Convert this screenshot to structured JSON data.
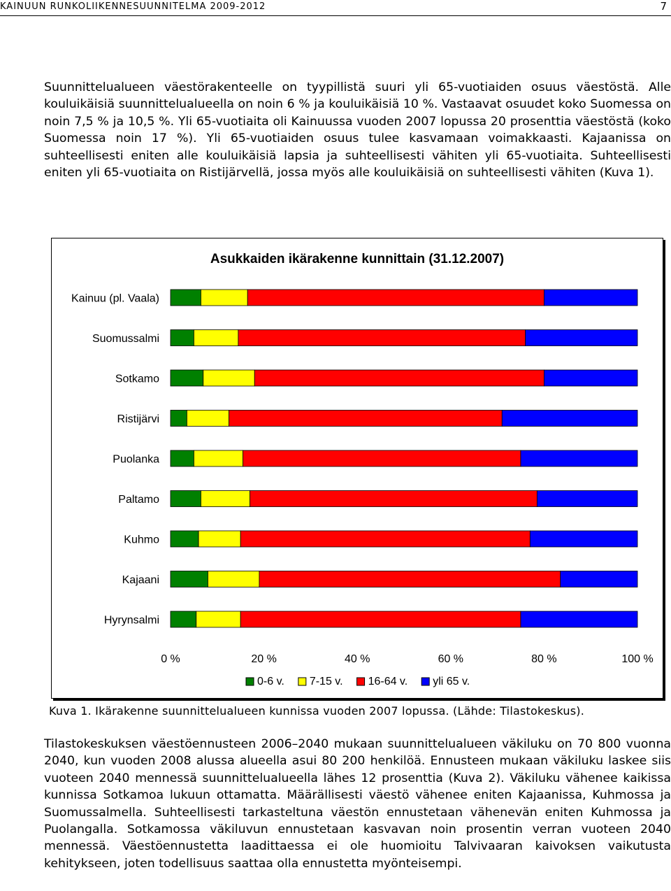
{
  "header": {
    "title": "KAINUUN RUNKOLIIKENNESUUNNITELMA 2009-2012",
    "page_number": "7"
  },
  "paragraph1": "Suunnittelualueen väestörakenteelle on tyypillistä suuri yli 65-vuotiaiden osuus väestöstä. Alle kouluikäisiä suunnittelualueella on noin 6 % ja kouluikäisiä 10 %. Vastaavat osuudet koko Suomessa on noin 7,5 % ja 10,5 %. Yli 65-vuotiaita oli Kainuussa vuoden 2007 lopussa 20 prosenttia väestöstä (koko Suomessa noin 17 %). Yli 65-vuotiaiden osuus tulee kasvamaan voimakkaasti. Kajaanissa on suhteellisesti eniten alle kouluikäisiä lapsia ja suhteellisesti vähiten yli 65-vuotiaita. Suhteellisesti eniten yli 65-vuotiaita on Ristijärvellä, jossa myös alle kouluikäisiä on suhteellisesti vähiten (Kuva 1).",
  "chart_data": {
    "type": "bar",
    "orientation": "horizontal",
    "stacked": "percent",
    "title": "Asukkaiden ikärakenne kunnittain (31.12.2007)",
    "categories": [
      "Kainuu (pl. Vaala)",
      "Suomussalmi",
      "Sotkamo",
      "Ristijärvi",
      "Puolanka",
      "Paltamo",
      "Kuhmo",
      "Kajaani",
      "Hyrynsalmi"
    ],
    "series": [
      {
        "name": "0-6 v.",
        "color": "#008000",
        "values": [
          6.5,
          5,
          7,
          3.5,
          5,
          6.5,
          6,
          8,
          5.5
        ]
      },
      {
        "name": "7-15 v.",
        "color": "#ffff00",
        "values": [
          10,
          9.5,
          11,
          9,
          10.5,
          10.5,
          9,
          11,
          9.5
        ]
      },
      {
        "name": "16-64 v.",
        "color": "#ff0000",
        "values": [
          63.5,
          61.5,
          62,
          58.5,
          59.5,
          61.5,
          62,
          64.5,
          60
        ]
      },
      {
        "name": "yli 65 v.",
        "color": "#0000ff",
        "values": [
          20,
          24,
          20,
          29,
          25,
          21.5,
          23,
          16.5,
          25
        ]
      }
    ],
    "xticks": [
      "0 %",
      "20 %",
      "40 %",
      "60 %",
      "80 %",
      "100 %"
    ],
    "xlim": [
      0,
      100
    ],
    "legend_position": "bottom",
    "grid": false
  },
  "caption": "Kuva 1. Ikärakenne suunnittelualueen kunnissa vuoden 2007 lopussa. (Lähde: Tilastokeskus).",
  "paragraph2": "Tilastokeskuksen väestöennusteen 2006–2040 mukaan suunnittelualueen väkiluku on 70 800 vuonna 2040, kun vuoden 2008 alussa alueella asui 80 200 henkilöä. Ennusteen mukaan väkiluku laskee siis vuoteen 2040 mennessä suunnittelualueella lähes 12 prosenttia (Kuva 2). Väkiluku vähenee kaikissa kunnissa Sotkamoa lukuun ottamatta. Määrällisesti väestö vähenee eniten Kajaanissa, Kuhmossa ja Suomussalmella. Suhteellisesti tarkasteltuna väestön ennustetaan vähenevän eniten Kuhmossa ja Puolangalla. Sotkamossa väkiluvun ennustetaan kasvavan noin prosentin verran vuoteen 2040 mennessä. Väestöennustetta laadittaessa ei ole huomioitu Talvivaaran kaivoksen vaikutusta kehitykseen, joten todellisuus saattaa olla ennustetta myönteisempi."
}
